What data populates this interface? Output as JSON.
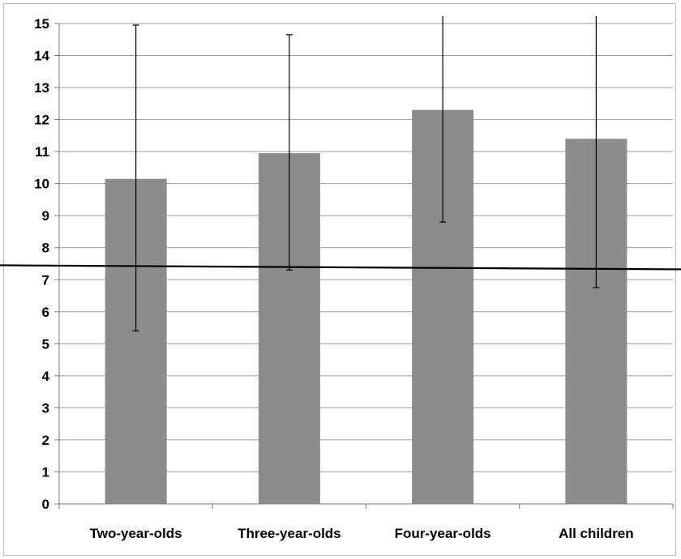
{
  "chart_data": {
    "type": "bar",
    "title": "",
    "xlabel": "",
    "ylabel": "",
    "ylim": [
      0,
      15
    ],
    "yticks": [
      0,
      1,
      2,
      3,
      4,
      5,
      6,
      7,
      8,
      9,
      10,
      11,
      12,
      13,
      14,
      15
    ],
    "grid": true,
    "categories": [
      "Two-year-olds",
      "Three-year-olds",
      "Four-year-olds",
      "All children"
    ],
    "values": [
      10.15,
      10.95,
      12.3,
      11.4
    ],
    "error_low": [
      5.4,
      7.3,
      8.8,
      6.75
    ],
    "error_high": [
      14.95,
      14.65,
      15.8,
      16.05
    ],
    "reference_line": 7.4,
    "colors": {
      "bar": "#8c8c8c",
      "grid": "#9e9e9e",
      "axis": "#7a7a7a",
      "error": "#000000",
      "reference": "#000000"
    }
  }
}
